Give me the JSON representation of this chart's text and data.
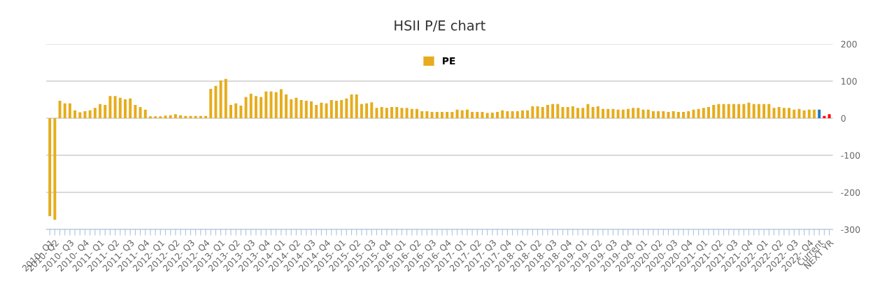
{
  "chart_data": {
    "type": "bar",
    "title": "HSII P/E chart",
    "categories": [
      "2010- Q1",
      "2010- Q2",
      null,
      null,
      "2010- Q3",
      null,
      null,
      "2010- Q4",
      null,
      null,
      "2011- Q1",
      null,
      null,
      "2011- Q2",
      null,
      null,
      "2011- Q3",
      null,
      null,
      "2011- Q4",
      null,
      null,
      "2012- Q1",
      null,
      null,
      "2012- Q2",
      null,
      null,
      "2012- Q3",
      null,
      null,
      "2012- Q4",
      null,
      null,
      "2013- Q1",
      null,
      null,
      "2013- Q2",
      null,
      null,
      "2013- Q3",
      null,
      null,
      "2013- Q4",
      null,
      null,
      "2014- Q1",
      null,
      null,
      "2014- Q2",
      null,
      null,
      "2014- Q3",
      null,
      null,
      "2014- Q4",
      null,
      null,
      "2015- Q1",
      null,
      null,
      "2015- Q2",
      null,
      null,
      "2015- Q3",
      null,
      null,
      "2015- Q4",
      null,
      null,
      "2016- Q1",
      null,
      null,
      "2016- Q2",
      null,
      null,
      "2016- Q3",
      null,
      null,
      "2016- Q4",
      null,
      null,
      "2017- Q1",
      null,
      null,
      "2017- Q2",
      null,
      null,
      "2017- Q3",
      null,
      null,
      "2017- Q4",
      null,
      null,
      "2018- Q1",
      null,
      null,
      "2018- Q2",
      null,
      null,
      "2018- Q3",
      null,
      null,
      "2018- Q4",
      null,
      null,
      "2019- Q1",
      null,
      null,
      "2019- Q2",
      null,
      null,
      "2019- Q3",
      null,
      null,
      "2019- Q4",
      null,
      null,
      "2020- Q1",
      null,
      null,
      "2020- Q2",
      null,
      null,
      "2020- Q3",
      null,
      null,
      "2020- Q4",
      null,
      null,
      "2021- Q1",
      null,
      null,
      "2021- Q2",
      null,
      null,
      "2021- Q3",
      null,
      null,
      "2021- Q4",
      null,
      null,
      "2022- Q1",
      null,
      null,
      "2022- Q2",
      null,
      null,
      "2022- Q3",
      null,
      null,
      "2022- Q4",
      null,
      "Current",
      null,
      "NEXT YR"
    ],
    "series": [
      {
        "name": "PE",
        "color": "#e6ac1c",
        "values": [
          -264,
          -274,
          47,
          40,
          40,
          21,
          16,
          19,
          21,
          28,
          38,
          36,
          60,
          60,
          55,
          51,
          53,
          36,
          30,
          23,
          5,
          5,
          5,
          7,
          8,
          11,
          8,
          6,
          6,
          6,
          6,
          6,
          79,
          87,
          102,
          106,
          36,
          40,
          34,
          57,
          66,
          60,
          57,
          72,
          72,
          70,
          78,
          64,
          51,
          55,
          49,
          47,
          45,
          36,
          42,
          40,
          49,
          47,
          49,
          53,
          64,
          64,
          38,
          40,
          43,
          28,
          30,
          28,
          30,
          30,
          28,
          28,
          25,
          25,
          19,
          19,
          17,
          17,
          17,
          17,
          17,
          23,
          21,
          23,
          17,
          17,
          17,
          14,
          15,
          17,
          21,
          19,
          19,
          19,
          21,
          21,
          32,
          32,
          30,
          36,
          38,
          38,
          30,
          30,
          32,
          28,
          28,
          38,
          30,
          32,
          25,
          25,
          25,
          23,
          23,
          25,
          28,
          28,
          23,
          23,
          19,
          19,
          19,
          17,
          19,
          17,
          17,
          19,
          23,
          25,
          28,
          30,
          36,
          38,
          38,
          38,
          38,
          38,
          38,
          42,
          38,
          38,
          38,
          38,
          28,
          30,
          28,
          28,
          23,
          25,
          21,
          23,
          23,
          23,
          6,
          11
        ],
        "colors": [
          "#e6ac1c",
          "#e6ac1c",
          "#e6ac1c",
          "#e6ac1c",
          "#e6ac1c",
          "#e6ac1c",
          "#e6ac1c",
          "#e6ac1c",
          "#e6ac1c",
          "#e6ac1c",
          "#e6ac1c",
          "#e6ac1c",
          "#e6ac1c",
          "#e6ac1c",
          "#e6ac1c",
          "#e6ac1c",
          "#e6ac1c",
          "#e6ac1c",
          "#e6ac1c",
          "#e6ac1c",
          "#e6ac1c",
          "#e6ac1c",
          "#e6ac1c",
          "#e6ac1c",
          "#e6ac1c",
          "#e6ac1c",
          "#e6ac1c",
          "#e6ac1c",
          "#e6ac1c",
          "#e6ac1c",
          "#e6ac1c",
          "#e6ac1c",
          "#e6ac1c",
          "#e6ac1c",
          "#e6ac1c",
          "#e6ac1c",
          "#e6ac1c",
          "#e6ac1c",
          "#e6ac1c",
          "#e6ac1c",
          "#e6ac1c",
          "#e6ac1c",
          "#e6ac1c",
          "#e6ac1c",
          "#e6ac1c",
          "#e6ac1c",
          "#e6ac1c",
          "#e6ac1c",
          "#e6ac1c",
          "#e6ac1c",
          "#e6ac1c",
          "#e6ac1c",
          "#e6ac1c",
          "#e6ac1c",
          "#e6ac1c",
          "#e6ac1c",
          "#e6ac1c",
          "#e6ac1c",
          "#e6ac1c",
          "#e6ac1c",
          "#e6ac1c",
          "#e6ac1c",
          "#e6ac1c",
          "#e6ac1c",
          "#e6ac1c",
          "#e6ac1c",
          "#e6ac1c",
          "#e6ac1c",
          "#e6ac1c",
          "#e6ac1c",
          "#e6ac1c",
          "#e6ac1c",
          "#e6ac1c",
          "#e6ac1c",
          "#e6ac1c",
          "#e6ac1c",
          "#e6ac1c",
          "#e6ac1c",
          "#e6ac1c",
          "#e6ac1c",
          "#e6ac1c",
          "#e6ac1c",
          "#e6ac1c",
          "#e6ac1c",
          "#e6ac1c",
          "#e6ac1c",
          "#e6ac1c",
          "#e6ac1c",
          "#e6ac1c",
          "#e6ac1c",
          "#e6ac1c",
          "#e6ac1c",
          "#e6ac1c",
          "#e6ac1c",
          "#e6ac1c",
          "#e6ac1c",
          "#e6ac1c",
          "#e6ac1c",
          "#e6ac1c",
          "#e6ac1c",
          "#e6ac1c",
          "#e6ac1c",
          "#e6ac1c",
          "#e6ac1c",
          "#e6ac1c",
          "#e6ac1c",
          "#e6ac1c",
          "#e6ac1c",
          "#e6ac1c",
          "#e6ac1c",
          "#e6ac1c",
          "#e6ac1c",
          "#e6ac1c",
          "#e6ac1c",
          "#e6ac1c",
          "#e6ac1c",
          "#e6ac1c",
          "#e6ac1c",
          "#e6ac1c",
          "#e6ac1c",
          "#e6ac1c",
          "#e6ac1c",
          "#e6ac1c",
          "#e6ac1c",
          "#e6ac1c",
          "#e6ac1c",
          "#e6ac1c",
          "#e6ac1c",
          "#e6ac1c",
          "#e6ac1c",
          "#e6ac1c",
          "#e6ac1c",
          "#e6ac1c",
          "#e6ac1c",
          "#e6ac1c",
          "#e6ac1c",
          "#e6ac1c",
          "#e6ac1c",
          "#e6ac1c",
          "#e6ac1c",
          "#e6ac1c",
          "#e6ac1c",
          "#e6ac1c",
          "#e6ac1c",
          "#e6ac1c",
          "#e6ac1c",
          "#e6ac1c",
          "#e6ac1c",
          "#e6ac1c",
          "#e6ac1c",
          "#e6ac1c",
          "#e6ac1c",
          "#e6ac1c",
          "#1f78c1",
          "#ff0000",
          "#ff0000"
        ]
      }
    ],
    "ylim": [
      -300,
      200
    ],
    "yticks": [
      -300,
      -200,
      -100,
      0,
      100,
      200
    ],
    "grid": "y",
    "legend": "top"
  }
}
